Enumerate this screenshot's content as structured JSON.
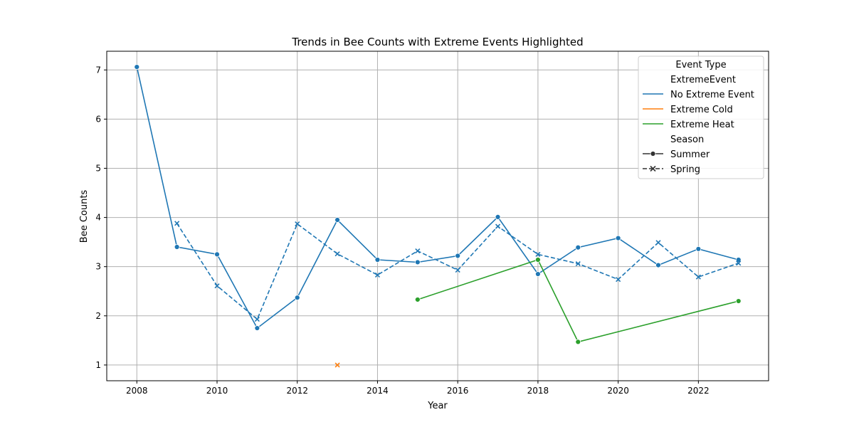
{
  "chart_data": {
    "type": "line",
    "title": "Trends in Bee Counts with Extreme Events Highlighted",
    "xlabel": "Year",
    "ylabel": "Bee Counts",
    "xlim": [
      2007.25,
      2023.75
    ],
    "ylim": [
      0.68,
      7.38
    ],
    "xticks": [
      2008,
      2010,
      2012,
      2014,
      2016,
      2018,
      2020,
      2022
    ],
    "yticks": [
      1,
      2,
      3,
      4,
      5,
      6,
      7
    ],
    "grid": true,
    "legend": {
      "title": "Event Type",
      "placement": "top-right",
      "hue_title": "ExtremeEvent",
      "style_title": "Season",
      "hue_entries": [
        {
          "label": "No Extreme Event",
          "color": "#1f77b4"
        },
        {
          "label": "Extreme Cold",
          "color": "#ff7f0e"
        },
        {
          "label": "Extreme Heat",
          "color": "#2ca02c"
        }
      ],
      "style_entries": [
        {
          "label": "Summer",
          "marker": "circle",
          "dash": "solid"
        },
        {
          "label": "Spring",
          "marker": "x",
          "dash": "dashed"
        }
      ]
    },
    "series": [
      {
        "event": "No Extreme Event",
        "season": "Summer",
        "color": "#1f77b4",
        "marker": "circle",
        "dash": "solid",
        "points": [
          [
            2008,
            7.06
          ],
          [
            2009,
            3.4
          ],
          [
            2010,
            3.25
          ],
          [
            2011,
            1.75
          ],
          [
            2012,
            2.37
          ],
          [
            2013,
            3.95
          ],
          [
            2014,
            3.14
          ],
          [
            2015,
            3.09
          ],
          [
            2016,
            3.22
          ],
          [
            2017,
            4.01
          ],
          [
            2018,
            2.85
          ],
          [
            2019,
            3.39
          ],
          [
            2020,
            3.58
          ],
          [
            2021,
            3.03
          ],
          [
            2022,
            3.36
          ],
          [
            2023,
            3.14
          ]
        ]
      },
      {
        "event": "No Extreme Event",
        "season": "Spring",
        "color": "#1f77b4",
        "marker": "x",
        "dash": "dashed",
        "points": [
          [
            2009,
            3.88
          ],
          [
            2010,
            2.61
          ],
          [
            2011,
            1.93
          ],
          [
            2012,
            3.87
          ],
          [
            2013,
            3.26
          ],
          [
            2014,
            2.83
          ],
          [
            2015,
            3.32
          ],
          [
            2016,
            2.93
          ],
          [
            2017,
            3.82
          ],
          [
            2018,
            3.25
          ],
          [
            2019,
            3.06
          ],
          [
            2020,
            2.74
          ],
          [
            2021,
            3.49
          ],
          [
            2022,
            2.79
          ],
          [
            2023,
            3.07
          ]
        ]
      },
      {
        "event": "Extreme Cold",
        "season": "Spring",
        "color": "#ff7f0e",
        "marker": "x",
        "dash": "dashed",
        "points": [
          [
            2013,
            1.0
          ]
        ]
      },
      {
        "event": "Extreme Heat",
        "season": "Summer",
        "color": "#2ca02c",
        "marker": "circle",
        "dash": "solid",
        "points": [
          [
            2015,
            2.33
          ],
          [
            2018,
            3.14
          ],
          [
            2019,
            1.47
          ],
          [
            2023,
            2.3
          ]
        ]
      }
    ]
  }
}
